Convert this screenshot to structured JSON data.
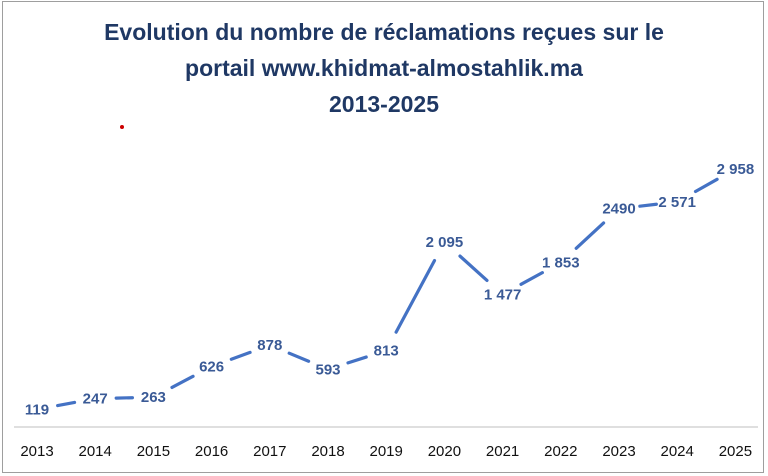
{
  "title_lines": [
    "Evolution du nombre de réclamations reçues sur le",
    "portail www.khidmat-almostahlik.ma",
    "2013-2025"
  ],
  "colors": {
    "title": "#1f3864",
    "line": "#4472c4",
    "label": "#3a5a96",
    "axis": "#bfbfbf",
    "dot": "#cc0000"
  },
  "chart_data": {
    "type": "line",
    "title": "Evolution du nombre de réclamations reçues sur le portail www.khidmat-almostahlik.ma 2013-2025",
    "categories": [
      "2013",
      "2014",
      "2015",
      "2016",
      "2017",
      "2018",
      "2019",
      "2020",
      "2021",
      "2022",
      "2023",
      "2024",
      "2025"
    ],
    "series": [
      {
        "values": [
          119,
          247,
          263,
          626,
          878,
          593,
          813,
          2095,
          1477,
          1853,
          2490,
          2571,
          2958
        ],
        "labels": [
          "119",
          "247",
          "263",
          "626",
          "878",
          "593",
          "813",
          "2 095",
          "1 477",
          "1 853",
          "2490",
          "2 571",
          "2 958"
        ]
      }
    ],
    "ylim": [
      0,
      3000
    ],
    "grid": false,
    "legend": "none"
  }
}
